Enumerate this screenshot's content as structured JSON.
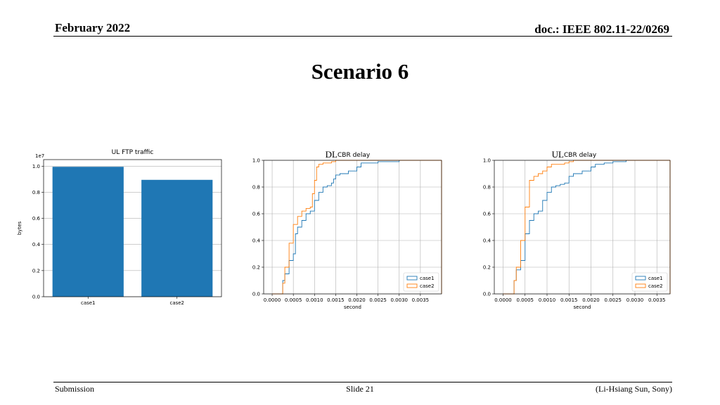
{
  "header": {
    "date": "February 2022",
    "doc": "doc.: IEEE 802.11-22/0269"
  },
  "slide_title": "Scenario 6",
  "footer": {
    "left": "Submission",
    "center": "Slide 21",
    "right": "(Li-Hsiang Sun, Sony)"
  },
  "colors": {
    "blue": "#1f77b4",
    "orange": "#ff7f0e",
    "grid": "#b0b0b0"
  },
  "chart_data": [
    {
      "type": "bar",
      "title": "UL FTP traffic",
      "ylabel": "bytes",
      "offset_label": "1e7",
      "categories": [
        "case1",
        "case2"
      ],
      "values": [
        0.995,
        0.895
      ],
      "ylim": [
        0,
        1.05
      ],
      "yticks": [
        "0.0",
        "0.2",
        "0.4",
        "0.6",
        "0.8",
        "1.0"
      ],
      "grid": true
    },
    {
      "type": "line",
      "title_prefix": "DL",
      "title": "CBR delay",
      "xlabel": "second",
      "xticks": [
        "0.0000",
        "0.0005",
        "0.0010",
        "0.0015",
        "0.0020",
        "0.0025",
        "0.0030",
        "0.0035"
      ],
      "yticks": [
        "0.0",
        "0.2",
        "0.4",
        "0.6",
        "0.8",
        "1.0"
      ],
      "xlim": [
        -0.0002,
        0.004
      ],
      "ylim": [
        0,
        1.0
      ],
      "legend": "lower-right",
      "grid": true,
      "series": [
        {
          "name": "case1",
          "color": "#1f77b4",
          "x": [
            0.0,
            0.0002,
            0.00025,
            0.0003,
            0.0004,
            0.0005,
            0.00055,
            0.0006,
            0.0007,
            0.0008,
            0.0009,
            0.001,
            0.0011,
            0.0012,
            0.0013,
            0.0014,
            0.00145,
            0.0015,
            0.0016,
            0.0018,
            0.002,
            0.0021,
            0.0023,
            0.0025,
            0.0027,
            0.003,
            0.0035
          ],
          "y": [
            0.0,
            0.0,
            0.1,
            0.15,
            0.25,
            0.3,
            0.45,
            0.5,
            0.55,
            0.6,
            0.62,
            0.7,
            0.76,
            0.8,
            0.81,
            0.83,
            0.86,
            0.89,
            0.9,
            0.92,
            0.95,
            0.98,
            0.98,
            0.99,
            0.99,
            1.0,
            1.0
          ]
        },
        {
          "name": "case2",
          "color": "#ff7f0e",
          "x": [
            0.0,
            0.0002,
            0.00025,
            0.0003,
            0.0004,
            0.0005,
            0.0006,
            0.0007,
            0.0008,
            0.0009,
            0.00095,
            0.001,
            0.00105,
            0.0011,
            0.0012,
            0.0014,
            0.0015,
            0.0017,
            0.0035
          ],
          "y": [
            0.0,
            0.0,
            0.08,
            0.2,
            0.38,
            0.52,
            0.58,
            0.62,
            0.64,
            0.65,
            0.75,
            0.85,
            0.95,
            0.97,
            0.98,
            0.99,
            1.0,
            1.0,
            1.0
          ]
        }
      ]
    },
    {
      "type": "line",
      "title_prefix": "UL",
      "title": "CBR delay",
      "xlabel": "second",
      "xticks": [
        "0.0000",
        "0.0005",
        "0.0010",
        "0.0015",
        "0.0020",
        "0.0025",
        "0.0030",
        "0.0035"
      ],
      "yticks": [
        "0.0",
        "0.2",
        "0.4",
        "0.6",
        "0.8",
        "1.0"
      ],
      "xlim": [
        -0.0002,
        0.0038
      ],
      "ylim": [
        0,
        1.0
      ],
      "legend": "lower-right",
      "grid": true,
      "series": [
        {
          "name": "case1",
          "color": "#1f77b4",
          "x": [
            0.0,
            0.0002,
            0.00025,
            0.0003,
            0.0004,
            0.0005,
            0.0006,
            0.0007,
            0.0008,
            0.0009,
            0.001,
            0.0011,
            0.0012,
            0.0013,
            0.0014,
            0.0015,
            0.0016,
            0.0018,
            0.002,
            0.0021,
            0.0023,
            0.0025,
            0.0028,
            0.003
          ],
          "y": [
            0.0,
            0.0,
            0.1,
            0.18,
            0.25,
            0.45,
            0.55,
            0.6,
            0.62,
            0.7,
            0.76,
            0.8,
            0.81,
            0.82,
            0.83,
            0.88,
            0.9,
            0.92,
            0.95,
            0.97,
            0.98,
            0.99,
            1.0,
            1.0
          ]
        },
        {
          "name": "case2",
          "color": "#ff7f0e",
          "x": [
            0.0,
            0.0002,
            0.00025,
            0.0003,
            0.0004,
            0.0005,
            0.0006,
            0.0007,
            0.0008,
            0.0009,
            0.001,
            0.0011,
            0.0012,
            0.0014,
            0.0015,
            0.0016,
            0.0018,
            0.002
          ],
          "y": [
            0.0,
            0.0,
            0.1,
            0.2,
            0.4,
            0.65,
            0.85,
            0.88,
            0.9,
            0.92,
            0.95,
            0.97,
            0.97,
            0.98,
            0.99,
            1.0,
            1.0,
            1.0
          ]
        }
      ]
    }
  ]
}
